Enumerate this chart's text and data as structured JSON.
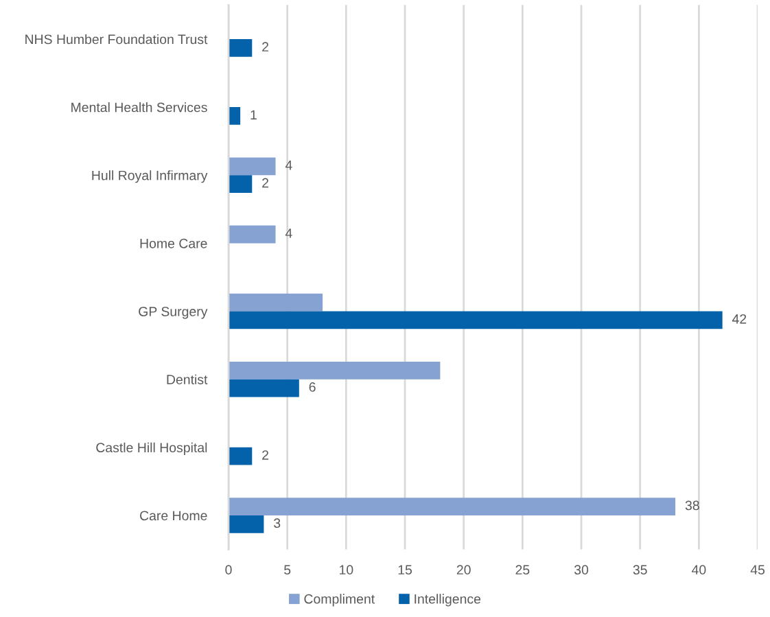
{
  "chart_data": {
    "type": "bar",
    "orientation": "horizontal",
    "categories": [
      "NHS Humber Foundation Trust",
      "Mental Health Services",
      "Hull Royal Infirmary",
      "Home Care",
      "GP Surgery",
      "Dentist",
      "Castle Hill Hospital",
      "Care Home"
    ],
    "series": [
      {
        "name": "Compliment",
        "color": "#86a2d3",
        "values": [
          null,
          null,
          4,
          4,
          8,
          18,
          null,
          38
        ],
        "value_labels": [
          null,
          null,
          "4",
          "4",
          null,
          null,
          null,
          "38"
        ]
      },
      {
        "name": "Intelligence",
        "color": "#0462ab",
        "values": [
          2,
          1,
          2,
          null,
          42,
          6,
          2,
          3
        ],
        "value_labels": [
          "2",
          "1",
          "2",
          null,
          "42",
          "6",
          "2",
          "3"
        ]
      }
    ],
    "xlim": [
      0,
      45
    ],
    "xticks": [
      0,
      5,
      10,
      15,
      20,
      25,
      30,
      35,
      40,
      45
    ],
    "grid": "x",
    "legend": "bottom"
  }
}
